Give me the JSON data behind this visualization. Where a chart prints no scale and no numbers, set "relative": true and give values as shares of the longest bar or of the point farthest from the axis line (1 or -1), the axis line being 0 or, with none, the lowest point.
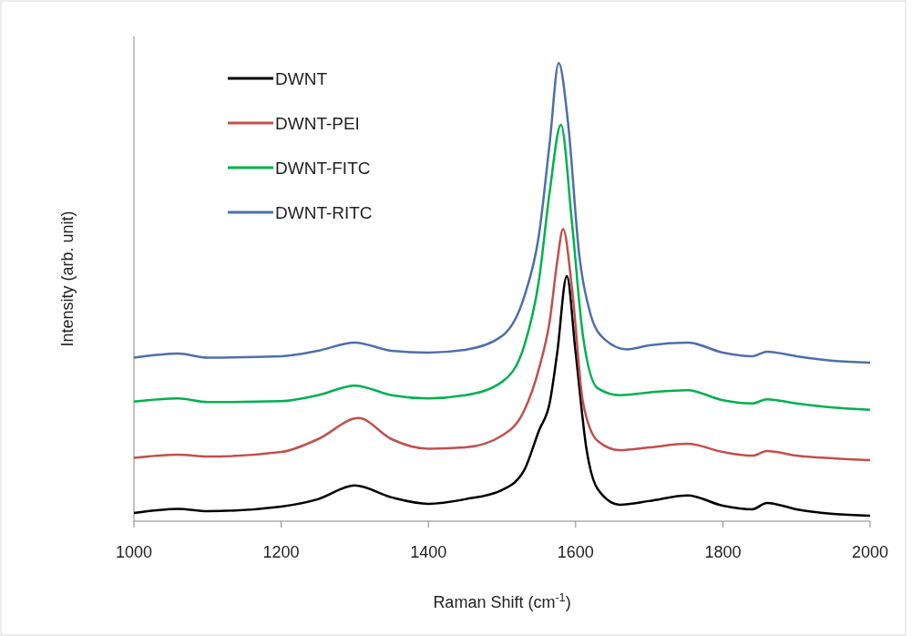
{
  "chart_data": {
    "type": "line",
    "relative": true,
    "xlabel": "Raman Shift (cm$^{-1}$)",
    "ylabel": "Intensity (arb. unit)",
    "xlim": [
      1000,
      2000
    ],
    "xticks": [
      1000,
      1200,
      1400,
      1600,
      1800,
      2000
    ],
    "legend": "top left",
    "grid": false,
    "marker": "none",
    "line_style": "solid",
    "series": [
      {
        "name": "DWNT",
        "color": "#000000",
        "x": [
          1000,
          1060,
          1100,
          1200,
          1250,
          1300,
          1350,
          1400,
          1450,
          1500,
          1530,
          1550,
          1565,
          1575,
          1588,
          1600,
          1615,
          1630,
          1660,
          1700,
          1752,
          1800,
          1840,
          1860,
          1900,
          1950,
          2000
        ],
        "values": [
          0.018,
          0.027,
          0.022,
          0.032,
          0.048,
          0.078,
          0.052,
          0.038,
          0.048,
          0.068,
          0.111,
          0.197,
          0.26,
          0.368,
          0.535,
          0.368,
          0.155,
          0.07,
          0.036,
          0.044,
          0.056,
          0.034,
          0.026,
          0.04,
          0.026,
          0.016,
          0.012
        ]
      },
      {
        "name": "DWNT-PEI",
        "color": "#c0504d",
        "x": [
          1000,
          1060,
          1100,
          1200,
          1250,
          1305,
          1350,
          1400,
          1450,
          1500,
          1530,
          1550,
          1565,
          1575,
          1583,
          1595,
          1610,
          1630,
          1660,
          1700,
          1752,
          1800,
          1840,
          1860,
          1900,
          1950,
          2000
        ],
        "values": [
          0.138,
          0.145,
          0.141,
          0.151,
          0.179,
          0.225,
          0.179,
          0.158,
          0.161,
          0.187,
          0.241,
          0.332,
          0.439,
          0.567,
          0.638,
          0.509,
          0.26,
          0.175,
          0.155,
          0.161,
          0.169,
          0.151,
          0.143,
          0.153,
          0.143,
          0.137,
          0.133
        ]
      },
      {
        "name": "DWNT-FITC",
        "color": "#00b050",
        "x": [
          1000,
          1060,
          1100,
          1200,
          1250,
          1300,
          1350,
          1400,
          1450,
          1500,
          1530,
          1550,
          1565,
          1580,
          1595,
          1610,
          1630,
          1660,
          1700,
          1752,
          1800,
          1840,
          1860,
          1900,
          1950,
          2000
        ],
        "values": [
          0.261,
          0.268,
          0.26,
          0.262,
          0.275,
          0.296,
          0.275,
          0.268,
          0.275,
          0.304,
          0.382,
          0.524,
          0.722,
          0.865,
          0.652,
          0.404,
          0.29,
          0.275,
          0.281,
          0.286,
          0.264,
          0.257,
          0.266,
          0.257,
          0.248,
          0.243
        ]
      },
      {
        "name": "DWNT-RITC",
        "color": "#4f6fa8",
        "x": [
          1000,
          1060,
          1100,
          1200,
          1250,
          1300,
          1350,
          1400,
          1450,
          1500,
          1530,
          1550,
          1565,
          1577,
          1590,
          1605,
          1620,
          1640,
          1670,
          1700,
          1752,
          1800,
          1840,
          1860,
          1900,
          1950,
          2000
        ],
        "values": [
          0.357,
          0.366,
          0.357,
          0.36,
          0.372,
          0.39,
          0.372,
          0.368,
          0.374,
          0.404,
          0.489,
          0.623,
          0.829,
          1.0,
          0.865,
          0.58,
          0.453,
          0.396,
          0.375,
          0.384,
          0.39,
          0.368,
          0.36,
          0.37,
          0.36,
          0.35,
          0.346
        ]
      }
    ]
  }
}
